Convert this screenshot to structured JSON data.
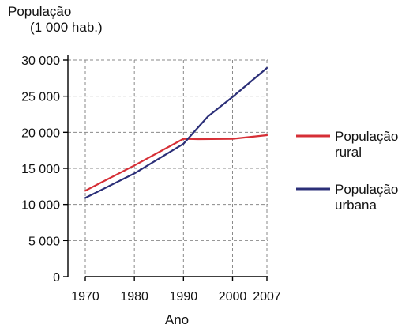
{
  "chart_data": {
    "type": "line",
    "ylabel_lines": [
      "População",
      "(1 000 hab.)"
    ],
    "xlabel": "Ano",
    "x": [
      1970,
      1980,
      1990,
      2000,
      2007
    ],
    "x_tick_labels": [
      "1970",
      "1980",
      "1990",
      "2000",
      "2007"
    ],
    "y_ticks": [
      0,
      5000,
      10000,
      15000,
      20000,
      25000,
      30000
    ],
    "y_tick_labels": [
      "0",
      "5 000",
      "10 000",
      "15 000",
      "20 000",
      "25 000",
      "30 000"
    ],
    "ylim": [
      0,
      30000
    ],
    "xlim": [
      1970,
      2007
    ],
    "grid": true,
    "legend_position": "right",
    "series": [
      {
        "key": "rural",
        "name_lines": [
          "População",
          "rural"
        ],
        "color": "#d62f36",
        "points": [
          [
            1970,
            11900
          ],
          [
            1980,
            15400
          ],
          [
            1990,
            19100
          ],
          [
            1993,
            19050
          ],
          [
            2000,
            19100
          ],
          [
            2007,
            19600
          ]
        ]
      },
      {
        "key": "urbana",
        "name_lines": [
          "População",
          "urbana"
        ],
        "color": "#2b2f78",
        "points": [
          [
            1970,
            10900
          ],
          [
            1980,
            14300
          ],
          [
            1990,
            18400
          ],
          [
            1995,
            22200
          ],
          [
            2000,
            24900
          ],
          [
            2007,
            28900
          ]
        ]
      }
    ]
  }
}
